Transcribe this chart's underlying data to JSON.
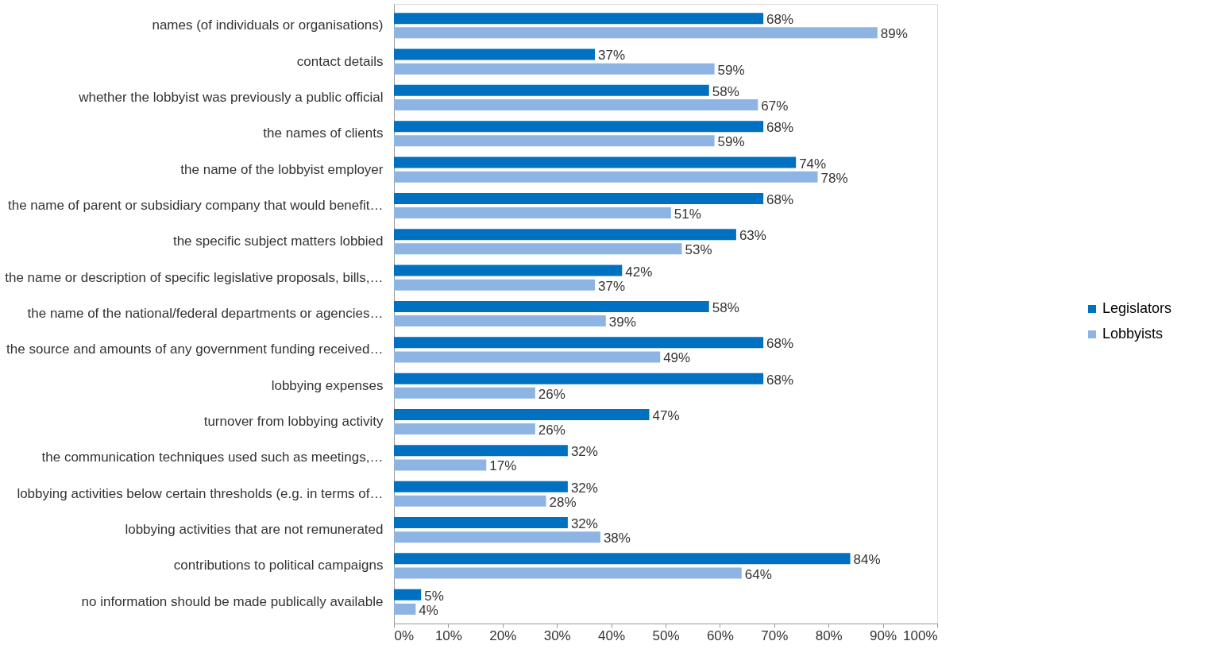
{
  "chart_data": {
    "type": "bar",
    "orientation": "horizontal",
    "categories": [
      "names (of individuals or organisations)",
      "contact details",
      "whether the lobbyist was previously a public official",
      "the names of clients",
      "the name of the lobbyist employer",
      "the name of parent or subsidiary company that would benefit…",
      "the specific subject matters lobbied",
      "the name or description of specific legislative proposals, bills,…",
      "the name of the national/federal departments or agencies…",
      "the source and amounts of any government funding received…",
      "lobbying expenses",
      "turnover from lobbying activity",
      "the communication techniques used such as meetings,…",
      "lobbying activities below certain thresholds (e.g. in terms of…",
      "lobbying activities that are not remunerated",
      "contributions to political campaigns",
      "no information should be made publically available"
    ],
    "series": [
      {
        "name": "Legislators",
        "color": "#0070c0",
        "values": [
          68,
          37,
          58,
          68,
          74,
          68,
          63,
          42,
          58,
          68,
          68,
          47,
          32,
          32,
          32,
          84,
          5
        ],
        "value_labels": [
          "68%",
          "37%",
          "58%",
          "68%",
          "74%",
          "68%",
          "63%",
          "42%",
          "58%",
          "68%",
          "68%",
          "47%",
          "32%",
          "32%",
          "32%",
          "84%",
          "5%"
        ]
      },
      {
        "name": "Lobbyists",
        "color": "#8db4e2",
        "values": [
          89,
          59,
          67,
          59,
          78,
          51,
          53,
          37,
          39,
          49,
          26,
          26,
          17,
          28,
          38,
          64,
          4
        ],
        "value_labels": [
          "89%",
          "59%",
          "67%",
          "59%",
          "78%",
          "51%",
          "53%",
          "37%",
          "39%",
          "49%",
          "26%",
          "26%",
          "17%",
          "28%",
          "38%",
          "64%",
          "4%"
        ]
      }
    ],
    "xlim": [
      0,
      100
    ],
    "xticks": [
      {
        "value": 0,
        "label": "0%"
      },
      {
        "value": 10,
        "label": "10%"
      },
      {
        "value": 20,
        "label": "20%"
      },
      {
        "value": 30,
        "label": "30%"
      },
      {
        "value": 40,
        "label": "40%"
      },
      {
        "value": 50,
        "label": "50%"
      },
      {
        "value": 60,
        "label": "60%"
      },
      {
        "value": 70,
        "label": "70%"
      },
      {
        "value": 80,
        "label": "80%"
      },
      {
        "value": 90,
        "label": "90%"
      },
      {
        "value": 100,
        "label": "100%"
      }
    ],
    "grid": false,
    "legend": "right"
  }
}
